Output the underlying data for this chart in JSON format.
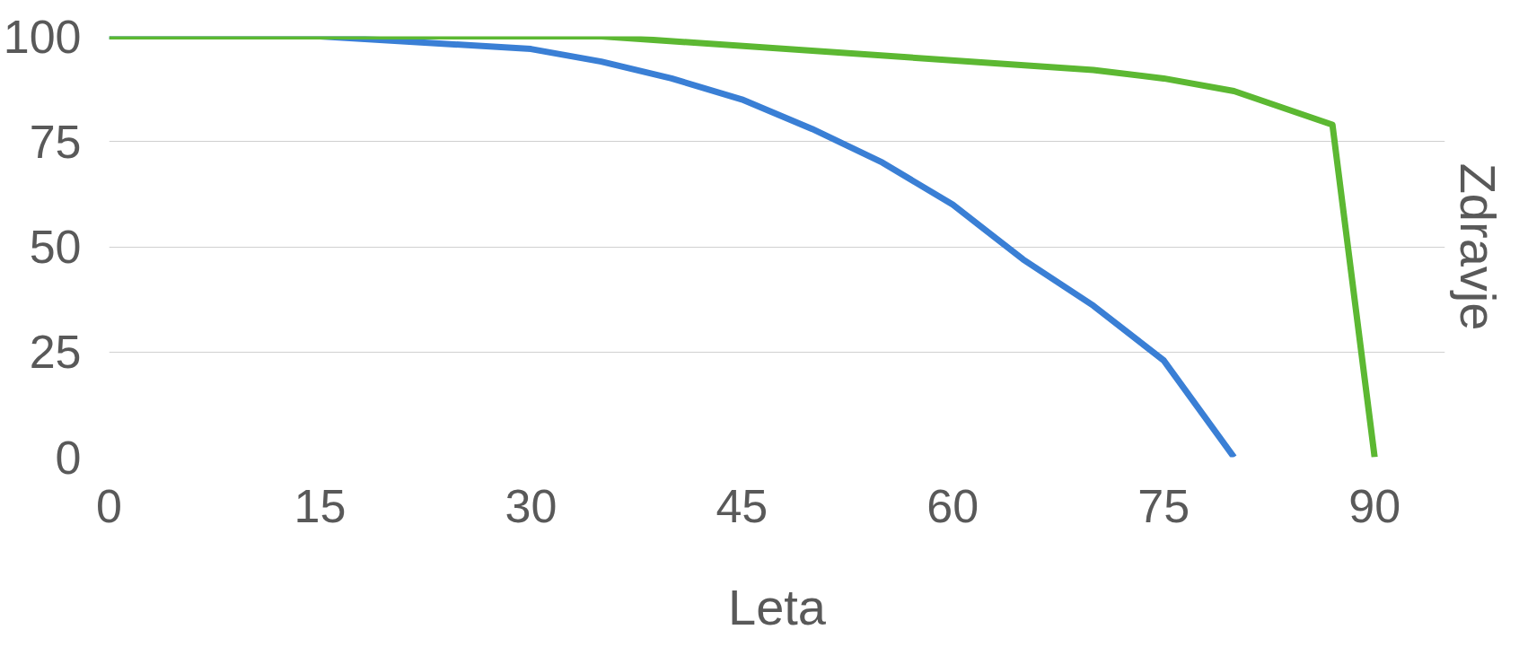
{
  "chart_data": {
    "type": "line",
    "xlabel": "Leta",
    "ylabel": "Zdravje",
    "xlim": [
      0,
      95
    ],
    "ylim": [
      0,
      100
    ],
    "xticks": [
      0,
      15,
      30,
      45,
      60,
      75,
      90
    ],
    "yticks": [
      0,
      25,
      50,
      75,
      100
    ],
    "grid": "y",
    "marker": "none",
    "line_style": "solid",
    "series": [
      {
        "color": "#3a7fd5",
        "x": [
          0,
          15,
          30,
          35,
          40,
          45,
          50,
          55,
          60,
          65,
          70,
          75,
          80
        ],
        "values": [
          100,
          100,
          97,
          94,
          90,
          85,
          78,
          70,
          60,
          47,
          36,
          23,
          0
        ]
      },
      {
        "color": "#5cb832",
        "x": [
          0,
          35,
          70,
          75,
          80,
          87,
          90
        ],
        "values": [
          100,
          100,
          92,
          90,
          87,
          79,
          0
        ]
      }
    ]
  }
}
